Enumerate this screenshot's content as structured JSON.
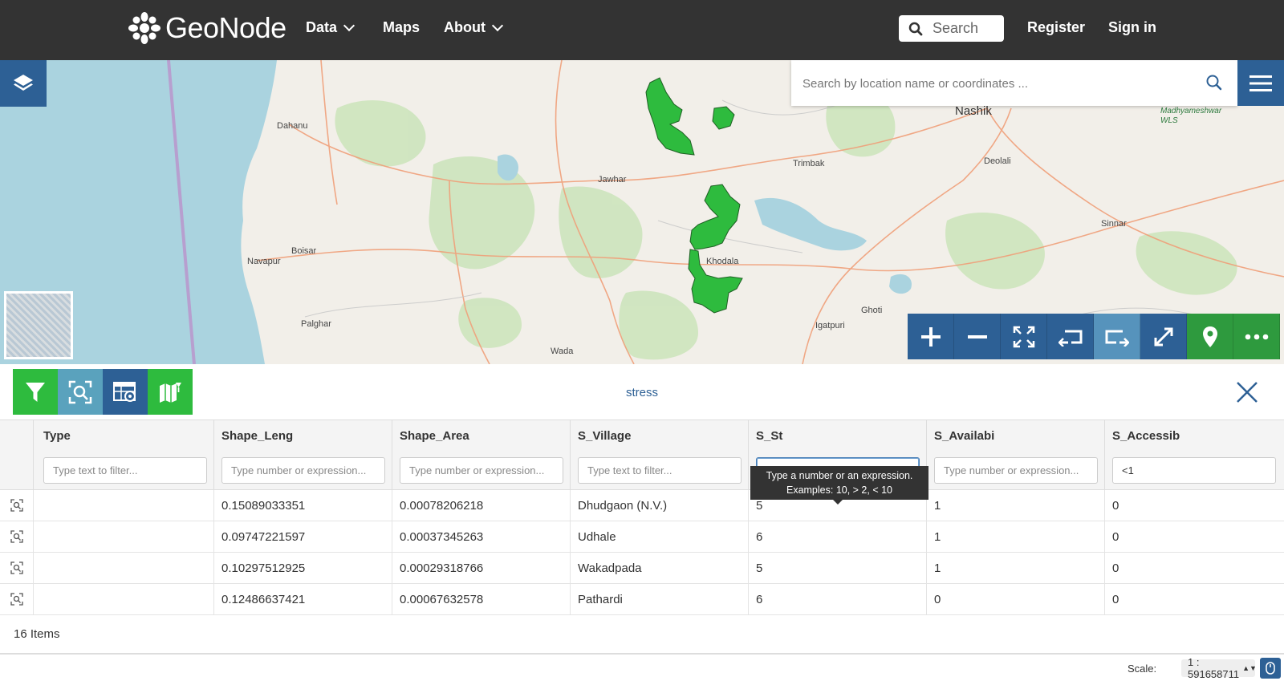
{
  "nav": {
    "brand": "GeoNode",
    "items": [
      {
        "label": "Data",
        "dropdown": true
      },
      {
        "label": "Maps",
        "dropdown": false
      },
      {
        "label": "About",
        "dropdown": true
      }
    ],
    "search_placeholder": "Search",
    "register": "Register",
    "signin": "Sign in"
  },
  "map": {
    "location_search_placeholder": "Search by location name or coordinates ...",
    "place_labels": [
      "Nashik",
      "Madhyameshwar WLS",
      "Dahanu",
      "Jawhar",
      "Trimbak",
      "Deolali",
      "Boisar",
      "Navapur",
      "Khodala",
      "Palghar",
      "Ghoti",
      "Igatpuri",
      "Wada",
      "Sinnar"
    ],
    "toolbar": [
      "zoom-in",
      "zoom-out",
      "zoom-to-max-extent",
      "undo-view",
      "redo-view",
      "fullscreen",
      "identify",
      "more"
    ],
    "feature_color": "#2ebb3e"
  },
  "panel": {
    "layer_title": "stress",
    "tools": [
      "filter",
      "zoom-to-features",
      "table-settings",
      "sync-map"
    ]
  },
  "table": {
    "columns": [
      {
        "label": "Type",
        "filter_placeholder": "Type text to filter...",
        "filter_value": ""
      },
      {
        "label": "Shape_Leng",
        "filter_placeholder": "Type number or expression...",
        "filter_value": ""
      },
      {
        "label": "Shape_Area",
        "filter_placeholder": "Type number or expression...",
        "filter_value": ""
      },
      {
        "label": "S_Village",
        "filter_placeholder": "Type text to filter...",
        "filter_value": ""
      },
      {
        "label": "S_St",
        "filter_placeholder": "Type number or expression...",
        "filter_value": ">4"
      },
      {
        "label": "S_Availabi",
        "filter_placeholder": "Type number or expression...",
        "filter_value": ""
      },
      {
        "label": "S_Accessib",
        "filter_placeholder": "Type number or expression...",
        "filter_value": "<1"
      }
    ],
    "tooltip": {
      "line1": "Type a number or an expression.",
      "line2": "Examples: 10, > 2, < 10"
    },
    "rows": [
      [
        "",
        "0.15089033351",
        "0.00078206218",
        "Dhudgaon (N.V.)",
        "5",
        "1",
        "0"
      ],
      [
        "",
        "0.09747221597",
        "0.00037345263",
        "Udhale",
        "6",
        "1",
        "0"
      ],
      [
        "",
        "0.10297512925",
        "0.00029318766",
        "Wakadpada",
        "5",
        "1",
        "0"
      ],
      [
        "",
        "0.12486637421",
        "0.00067632578",
        "Pathardi",
        "6",
        "0",
        "0"
      ]
    ],
    "count_text": "16 Items"
  },
  "footer": {
    "scale_label": "Scale:",
    "scale_value": "1 : 591658711"
  }
}
